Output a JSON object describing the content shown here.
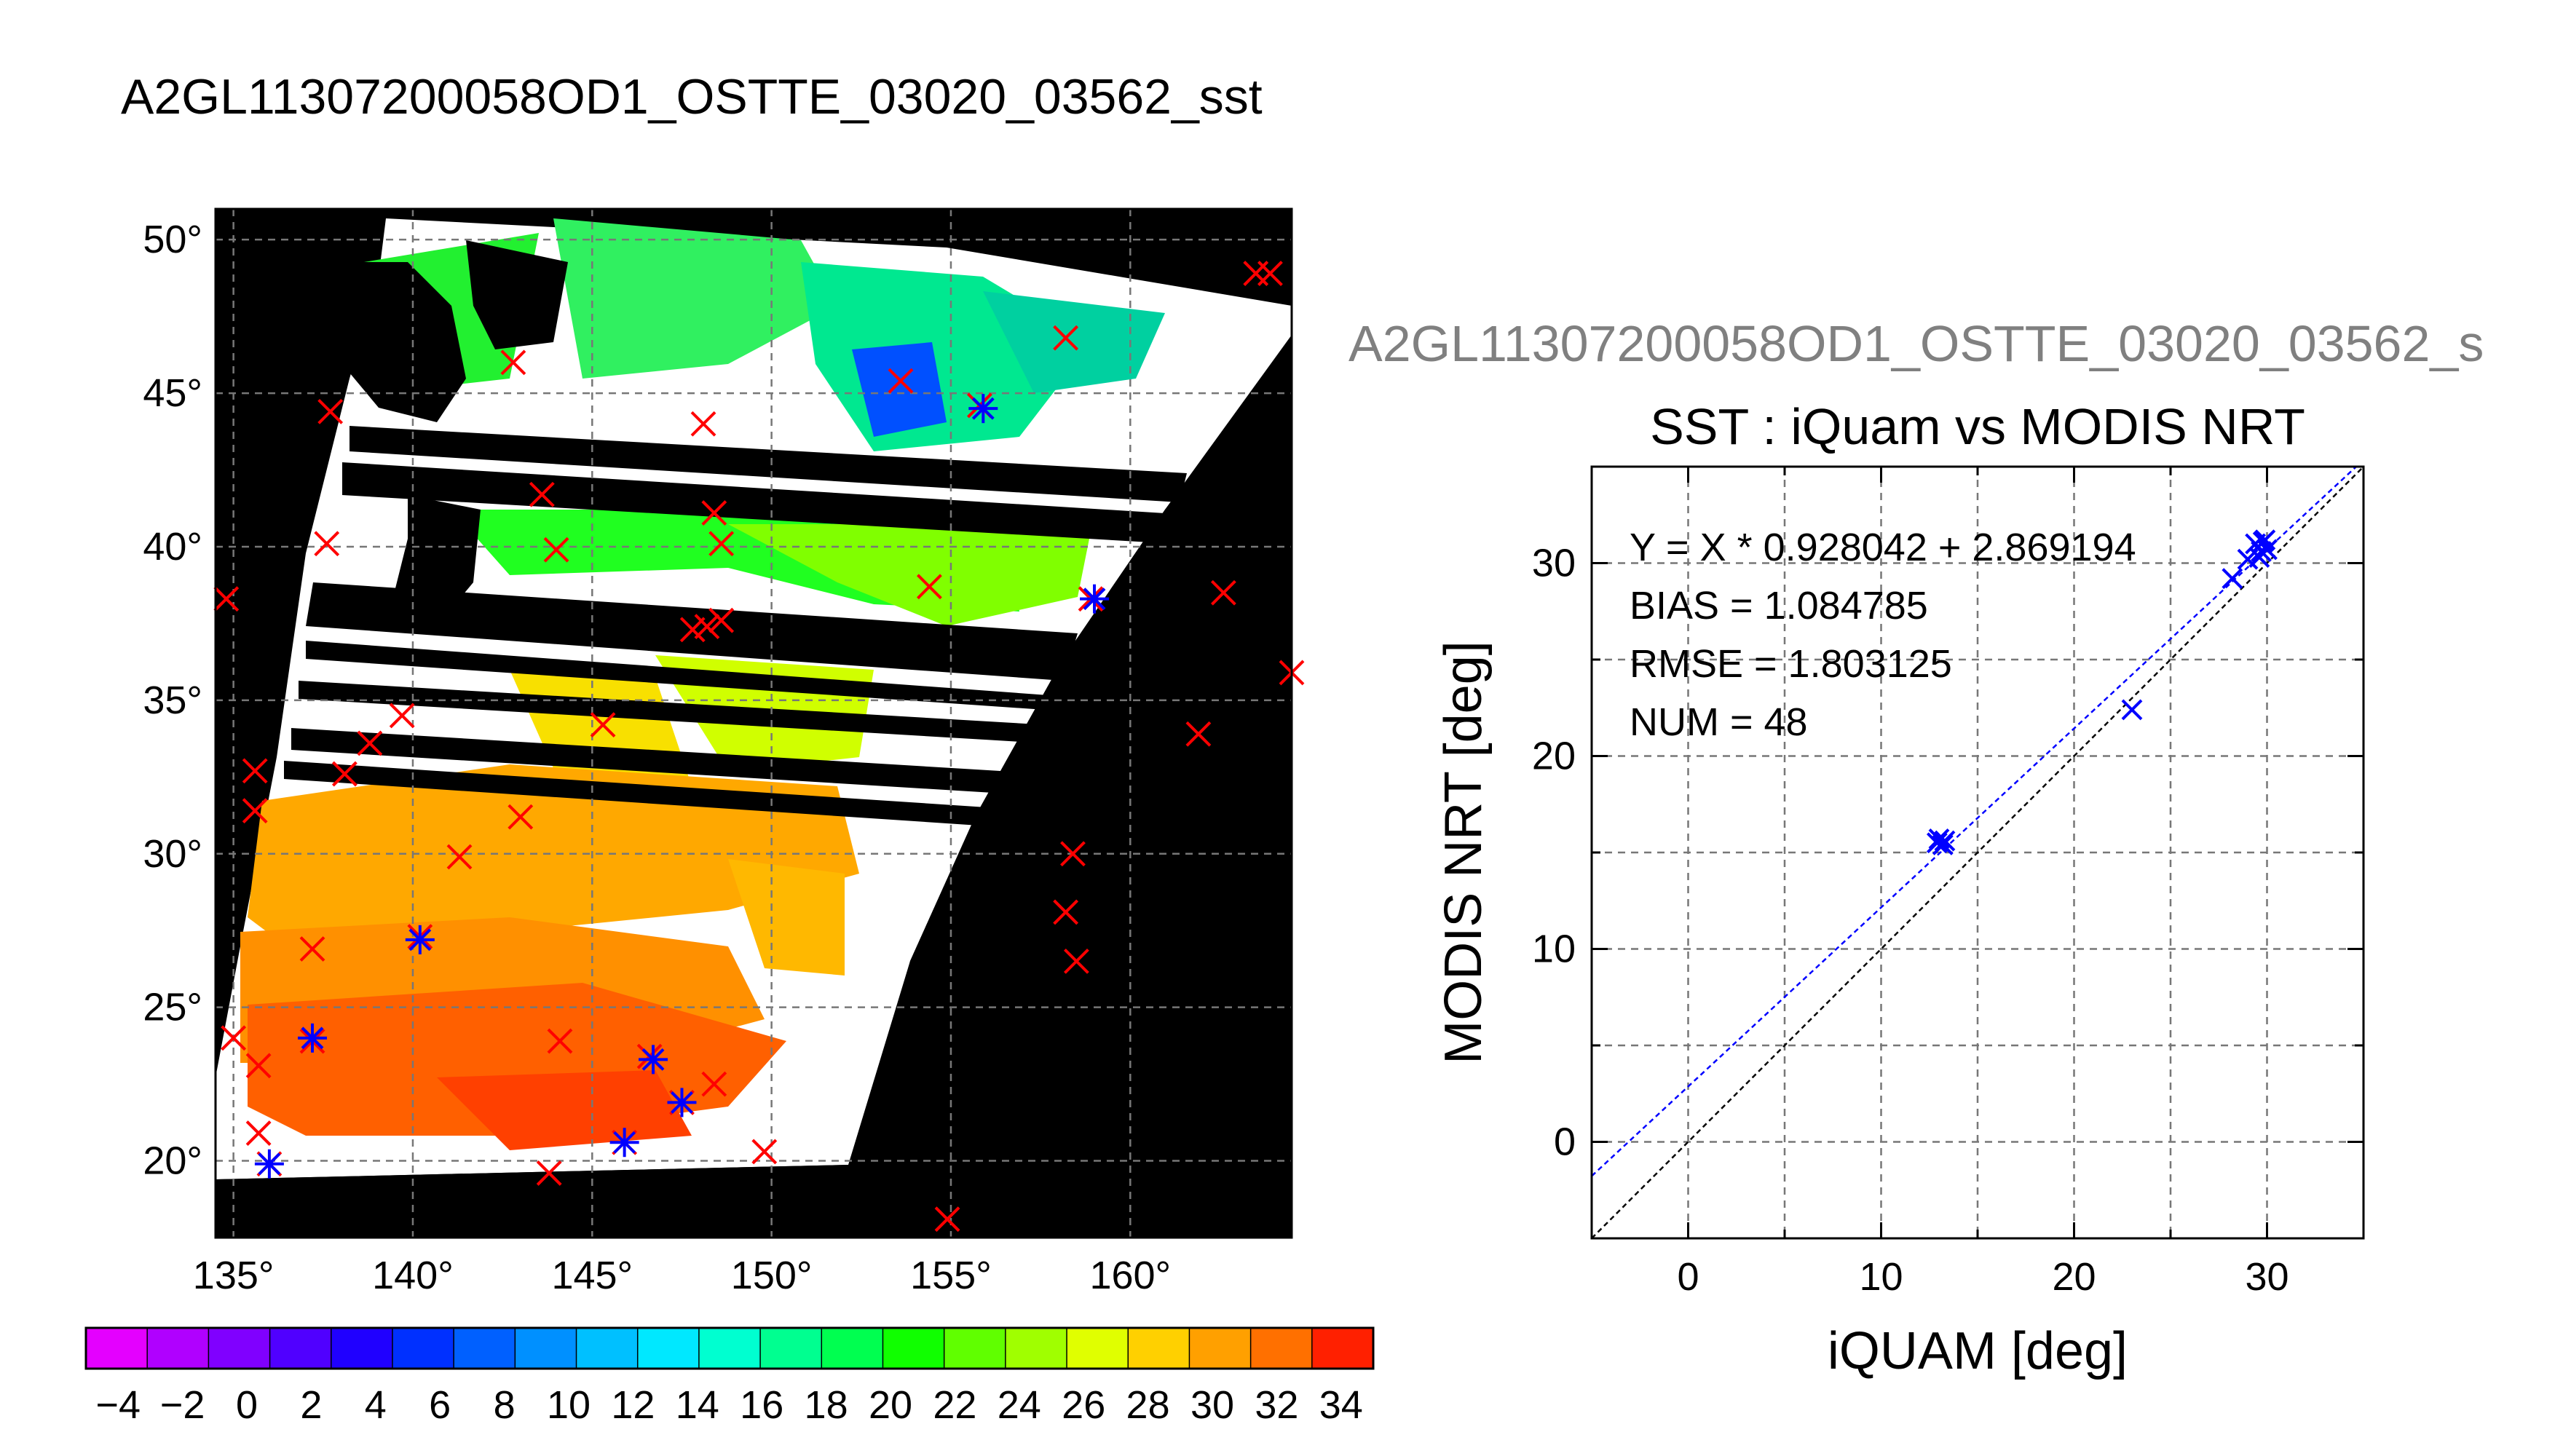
{
  "page_title": "A2GL11307200058OD1_OSTTE_03020_03562_sst",
  "secondary_title": "A2GL11307200058OD1_OSTTE_03020_03562_s",
  "colors": {
    "match_marker": "#ff0000",
    "iquam_marker": "#0000ff",
    "fit_line": "#0000ff",
    "identity_line": "#000000",
    "land": "#000000",
    "no_data": "#ffffff"
  },
  "chart_data": [
    {
      "type": "map",
      "title": "",
      "lon_ticks": [
        "135°",
        "140°",
        "145°",
        "150°",
        "155°",
        "160°"
      ],
      "lat_ticks": [
        "50°",
        "45°",
        "40°",
        "35°",
        "30°",
        "25°",
        "20°"
      ],
      "lon_range": [
        134.5,
        164.5
      ],
      "lat_range": [
        17.5,
        51
      ],
      "grid": true,
      "colorbar": {
        "min": -5,
        "max": 35,
        "ticks": [
          "−4",
          "−2",
          "0",
          "2",
          "4",
          "6",
          "8",
          "10",
          "12",
          "14",
          "16",
          "18",
          "20",
          "22",
          "24",
          "26",
          "28",
          "30",
          "32",
          "34"
        ],
        "colors": [
          "#e400ff",
          "#b000ff",
          "#8000ff",
          "#5000ff",
          "#2000ff",
          "#0030ff",
          "#0060ff",
          "#0090ff",
          "#00c0ff",
          "#00e8ff",
          "#00ffd0",
          "#00ff90",
          "#00ff50",
          "#10ff00",
          "#60ff00",
          "#a0ff00",
          "#e0ff00",
          "#ffd000",
          "#ffa000",
          "#ff7000",
          "#ff2000"
        ]
      },
      "red_markers": [
        [
          163.5,
          48.9
        ],
        [
          163.9,
          48.9
        ],
        [
          158.2,
          46.8
        ],
        [
          142.8,
          46.0
        ],
        [
          137.7,
          44.4
        ],
        [
          148.1,
          44.0
        ],
        [
          153.6,
          45.4
        ],
        [
          155.8,
          44.6
        ],
        [
          143.6,
          41.7
        ],
        [
          148.4,
          41.1
        ],
        [
          137.6,
          40.1
        ],
        [
          144.0,
          39.9
        ],
        [
          148.6,
          40.1
        ],
        [
          134.8,
          38.3
        ],
        [
          154.4,
          38.7
        ],
        [
          162.6,
          38.5
        ],
        [
          158.9,
          38.3
        ],
        [
          148.2,
          37.4
        ],
        [
          147.8,
          37.3
        ],
        [
          148.6,
          37.6
        ],
        [
          165.0,
          35.9
        ],
        [
          139.7,
          34.5
        ],
        [
          145.3,
          34.2
        ],
        [
          138.8,
          33.6
        ],
        [
          161.9,
          33.9
        ],
        [
          135.6,
          32.7
        ],
        [
          138.1,
          32.6
        ],
        [
          135.6,
          31.4
        ],
        [
          143.0,
          31.2
        ],
        [
          141.3,
          29.9
        ],
        [
          158.4,
          30.0
        ],
        [
          158.2,
          28.1
        ],
        [
          140.2,
          27.3
        ],
        [
          137.2,
          26.9
        ],
        [
          158.5,
          26.5
        ],
        [
          135.0,
          24.0
        ],
        [
          137.2,
          23.9
        ],
        [
          144.1,
          23.9
        ],
        [
          146.6,
          23.4
        ],
        [
          135.7,
          23.1
        ],
        [
          148.4,
          22.5
        ],
        [
          147.5,
          21.9
        ],
        [
          135.7,
          20.9
        ],
        [
          145.9,
          20.6
        ],
        [
          149.8,
          20.3
        ],
        [
          136.0,
          19.9
        ],
        [
          143.8,
          19.6
        ],
        [
          154.9,
          18.1
        ]
      ],
      "blue_markers": [
        [
          155.9,
          44.5
        ],
        [
          159.0,
          38.3
        ],
        [
          140.2,
          27.2
        ],
        [
          137.2,
          24.0
        ],
        [
          146.7,
          23.3
        ],
        [
          147.5,
          21.9
        ],
        [
          145.9,
          20.6
        ],
        [
          136.0,
          19.9
        ]
      ],
      "land_color": "#000000",
      "nodata_color": "#ffffff"
    },
    {
      "type": "scatter",
      "title": "SST : iQuam vs MODIS NRT",
      "xlabel": "iQUAM [deg]",
      "ylabel": "MODIS NRT [deg]",
      "xlim": [
        -5,
        35
      ],
      "ylim": [
        -5,
        35
      ],
      "xticks": [
        "0",
        "10",
        "20",
        "30"
      ],
      "yticks": [
        "0",
        "10",
        "20",
        "30"
      ],
      "grid": true,
      "points": {
        "x": [
          12.9,
          13.0,
          13.2,
          13.3,
          23.0,
          28.2,
          29.0,
          29.4,
          29.7,
          29.9,
          30.0,
          29.6,
          29.8
        ],
        "y": [
          15.5,
          15.7,
          15.4,
          15.6,
          22.4,
          29.2,
          30.2,
          31.0,
          30.6,
          31.2,
          30.7,
          30.3,
          31.1
        ]
      },
      "fit": {
        "slope": 0.928042,
        "intercept": 2.869194
      },
      "stats": [
        "Y = X * 0.928042 + 2.869194",
        "BIAS = 1.084785",
        "RMSE = 1.803125",
        "NUM = 48"
      ]
    }
  ]
}
